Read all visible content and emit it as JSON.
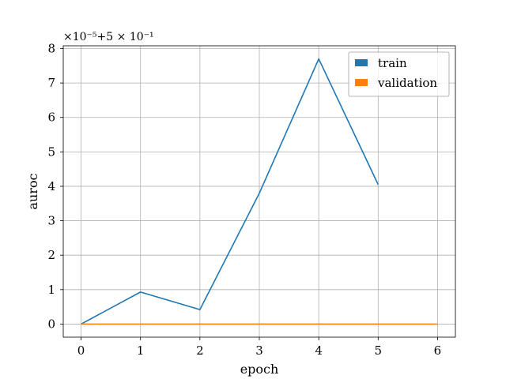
{
  "chart_data": {
    "type": "line",
    "title": "",
    "xlabel": "epoch",
    "ylabel": "auroc",
    "axis_offset": "×10⁻⁵+5 × 10⁻¹",
    "xlim": [
      -0.3,
      6.3
    ],
    "ylim": [
      -0.38,
      8.08
    ],
    "x_ticks": [
      0,
      1,
      2,
      3,
      4,
      5,
      6
    ],
    "y_ticks": [
      0,
      1,
      2,
      3,
      4,
      5,
      6,
      7,
      8
    ],
    "grid": true,
    "legend_position": "top-right",
    "series": [
      {
        "name": "train",
        "color": "#1f77b4",
        "x": [
          0,
          1,
          2,
          3,
          4,
          5
        ],
        "y": [
          0.0,
          0.93,
          0.42,
          3.8,
          7.7,
          4.05
        ]
      },
      {
        "name": "validation",
        "color": "#ff7f0e",
        "x": [
          0,
          1,
          2,
          3,
          4,
          5,
          6
        ],
        "y": [
          0,
          0,
          0,
          0,
          0,
          0,
          0
        ]
      }
    ]
  }
}
